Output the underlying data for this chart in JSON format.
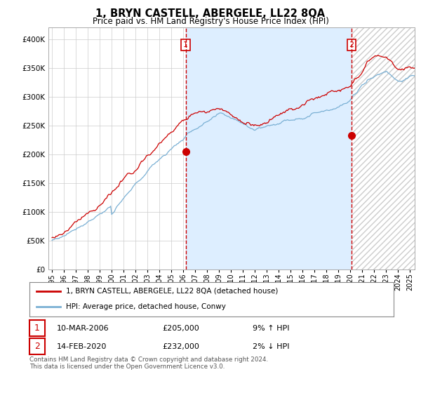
{
  "title": "1, BRYN CASTELL, ABERGELE, LL22 8QA",
  "subtitle": "Price paid vs. HM Land Registry's House Price Index (HPI)",
  "legend_entry1": "1, BRYN CASTELL, ABERGELE, LL22 8QA (detached house)",
  "legend_entry2": "HPI: Average price, detached house, Conwy",
  "footer": "Contains HM Land Registry data © Crown copyright and database right 2024.\nThis data is licensed under the Open Government Licence v3.0.",
  "ylim": [
    0,
    420000
  ],
  "yticks": [
    0,
    50000,
    100000,
    150000,
    200000,
    250000,
    300000,
    350000,
    400000
  ],
  "xlim_left": 1994.7,
  "xlim_right": 2025.4,
  "vline1_x": 2006.2,
  "vline2_x": 2020.1,
  "sale1_x": 2006.2,
  "sale1_y": 205000,
  "sale2_x": 2020.1,
  "sale2_y": 232000,
  "red_color": "#cc0000",
  "blue_color": "#7ab0d4",
  "shade_color": "#ddeeff",
  "background_color": "#ffffff",
  "grid_color": "#cccccc",
  "hatch_color": "#cccccc",
  "table_row1_date": "10-MAR-2006",
  "table_row1_price": "£205,000",
  "table_row1_hpi": "9% ↑ HPI",
  "table_row2_date": "14-FEB-2020",
  "table_row2_price": "£232,000",
  "table_row2_hpi": "2% ↓ HPI"
}
